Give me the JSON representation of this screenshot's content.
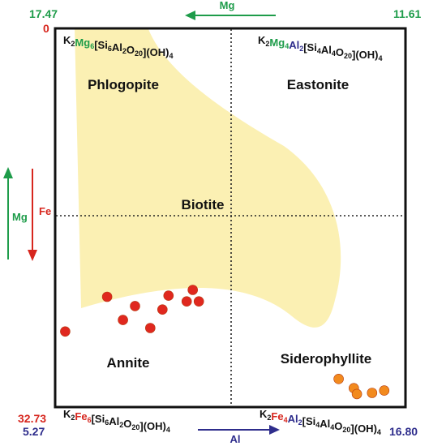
{
  "colors": {
    "green": "#1e9c4a",
    "red": "#d7261e",
    "navy": "#2e2d8c",
    "field_fill": "#fbf0b3",
    "red_points": "#e0281f",
    "orange_points": "#f28a1e",
    "ink": "#111111"
  },
  "corner_values": {
    "top_left": "17.47",
    "top_right": "11.61",
    "left_top": "0",
    "left_bottom": "32.73",
    "bottom_left": "5.27",
    "bottom_right": "16.80"
  },
  "arrows": {
    "top": "Mg",
    "bottom": "Al",
    "left_green": "Mg",
    "left_red": "Fe"
  },
  "fields": {
    "phlogopite": "Phlogopite",
    "eastonite": "Eastonite",
    "biotite": "Biotite",
    "annite": "Annite",
    "siderophyllite": "Siderophyllite"
  },
  "formulas": {
    "top_left": [
      {
        "t": "K",
        "c": "ink"
      },
      {
        "t": "2",
        "c": "ink",
        "sub": true
      },
      {
        "t": "Mg",
        "c": "green"
      },
      {
        "t": "6",
        "c": "green",
        "sub": true
      },
      {
        "t": "[Si",
        "c": "ink"
      },
      {
        "t": "6",
        "c": "ink",
        "sub": true
      },
      {
        "t": "Al",
        "c": "ink"
      },
      {
        "t": "2",
        "c": "ink",
        "sub": true
      },
      {
        "t": "O",
        "c": "ink"
      },
      {
        "t": "20",
        "c": "ink",
        "sub": true
      },
      {
        "t": "](OH)",
        "c": "ink"
      },
      {
        "t": "4",
        "c": "ink",
        "sub": true
      }
    ],
    "top_right": [
      {
        "t": "K",
        "c": "ink"
      },
      {
        "t": "2",
        "c": "ink",
        "sub": true
      },
      {
        "t": "Mg",
        "c": "green"
      },
      {
        "t": "4",
        "c": "green",
        "sub": true
      },
      {
        "t": "Al",
        "c": "navy"
      },
      {
        "t": "2",
        "c": "navy",
        "sub": true
      },
      {
        "t": "[Si",
        "c": "ink"
      },
      {
        "t": "4",
        "c": "ink",
        "sub": true
      },
      {
        "t": "Al",
        "c": "ink"
      },
      {
        "t": "4",
        "c": "ink",
        "sub": true
      },
      {
        "t": "O",
        "c": "ink"
      },
      {
        "t": "20",
        "c": "ink",
        "sub": true
      },
      {
        "t": "](OH)",
        "c": "ink"
      },
      {
        "t": "4",
        "c": "ink",
        "sub": true
      }
    ],
    "bottom_left": [
      {
        "t": "K",
        "c": "ink"
      },
      {
        "t": "2",
        "c": "ink",
        "sub": true
      },
      {
        "t": "Fe",
        "c": "red"
      },
      {
        "t": "6",
        "c": "red",
        "sub": true
      },
      {
        "t": "[Si",
        "c": "ink"
      },
      {
        "t": "6",
        "c": "ink",
        "sub": true
      },
      {
        "t": "Al",
        "c": "ink"
      },
      {
        "t": "2",
        "c": "ink",
        "sub": true
      },
      {
        "t": "O",
        "c": "ink"
      },
      {
        "t": "20",
        "c": "ink",
        "sub": true
      },
      {
        "t": "](OH)",
        "c": "ink"
      },
      {
        "t": "4",
        "c": "ink",
        "sub": true
      }
    ],
    "bottom_right": [
      {
        "t": "K",
        "c": "ink"
      },
      {
        "t": "2",
        "c": "ink",
        "sub": true
      },
      {
        "t": "Fe",
        "c": "red"
      },
      {
        "t": "4",
        "c": "red",
        "sub": true
      },
      {
        "t": "Al",
        "c": "navy"
      },
      {
        "t": "2",
        "c": "navy",
        "sub": true
      },
      {
        "t": "[Si",
        "c": "ink"
      },
      {
        "t": "4",
        "c": "ink",
        "sub": true
      },
      {
        "t": "Al",
        "c": "ink"
      },
      {
        "t": "4",
        "c": "ink",
        "sub": true
      },
      {
        "t": "O",
        "c": "ink"
      },
      {
        "t": "20",
        "c": "ink",
        "sub": true
      },
      {
        "t": "](OH)",
        "c": "ink"
      },
      {
        "t": "4",
        "c": "ink",
        "sub": true
      }
    ]
  },
  "samples": {
    "red_group": [
      {
        "al": 6.98,
        "fe": 23.2
      },
      {
        "al": 7.9,
        "fe": 24.0
      },
      {
        "al": 8.8,
        "fe": 24.3
      },
      {
        "al": 9.8,
        "fe": 22.6
      },
      {
        "al": 10.0,
        "fe": 23.6
      },
      {
        "al": 9.0,
        "fe": 23.1
      },
      {
        "al": 7.5,
        "fe": 25.2
      },
      {
        "al": 8.4,
        "fe": 25.9
      },
      {
        "al": 5.6,
        "fe": 26.2
      },
      {
        "al": 9.6,
        "fe": 23.6
      }
    ],
    "orange_group": [
      {
        "al": 14.6,
        "fe": 30.3
      },
      {
        "al": 15.1,
        "fe": 31.1
      },
      {
        "al": 15.2,
        "fe": 31.6
      },
      {
        "al": 15.7,
        "fe": 31.5
      },
      {
        "al": 16.1,
        "fe": 31.3
      }
    ]
  }
}
